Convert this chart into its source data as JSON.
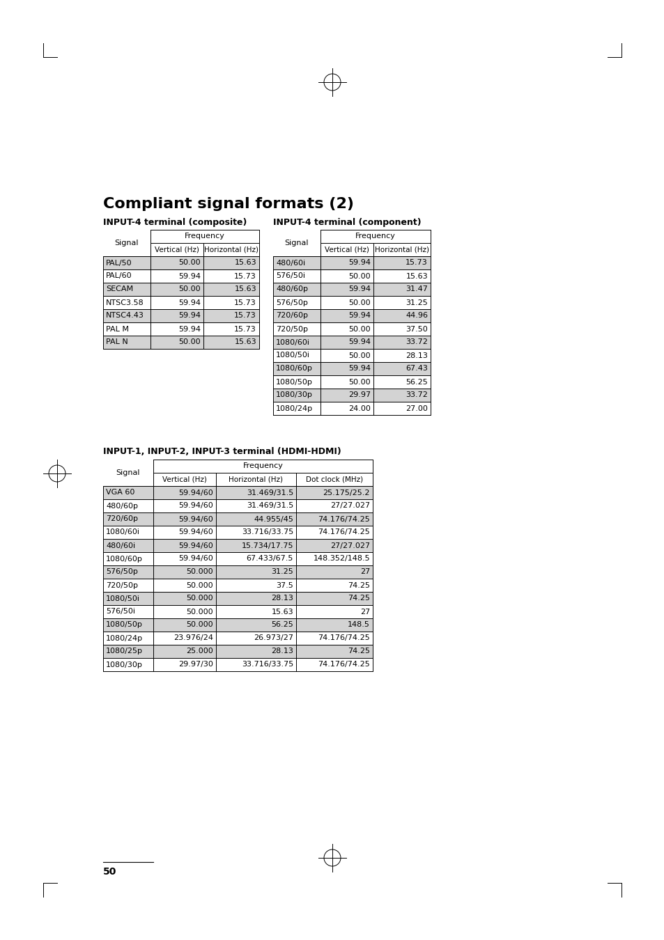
{
  "title": "Compliant signal formats (2)",
  "page_number": "50",
  "composite_title": "INPUT-4 terminal (composite)",
  "component_title": "INPUT-4 terminal (component)",
  "hdmi_title": "INPUT-1, INPUT-2, INPUT-3 terminal (HDMI-HDMI)",
  "composite_data": [
    [
      "PAL/50",
      "50.00",
      "15.63"
    ],
    [
      "PAL/60",
      "59.94",
      "15.73"
    ],
    [
      "SECAM",
      "50.00",
      "15.63"
    ],
    [
      "NTSC3.58",
      "59.94",
      "15.73"
    ],
    [
      "NTSC4.43",
      "59.94",
      "15.73"
    ],
    [
      "PAL M",
      "59.94",
      "15.73"
    ],
    [
      "PAL N",
      "50.00",
      "15.63"
    ]
  ],
  "composite_shaded": [
    0,
    2,
    4,
    6
  ],
  "component_data": [
    [
      "480/60i",
      "59.94",
      "15.73"
    ],
    [
      "576/50i",
      "50.00",
      "15.63"
    ],
    [
      "480/60p",
      "59.94",
      "31.47"
    ],
    [
      "576/50p",
      "50.00",
      "31.25"
    ],
    [
      "720/60p",
      "59.94",
      "44.96"
    ],
    [
      "720/50p",
      "50.00",
      "37.50"
    ],
    [
      "1080/60i",
      "59.94",
      "33.72"
    ],
    [
      "1080/50i",
      "50.00",
      "28.13"
    ],
    [
      "1080/60p",
      "59.94",
      "67.43"
    ],
    [
      "1080/50p",
      "50.00",
      "56.25"
    ],
    [
      "1080/30p",
      "29.97",
      "33.72"
    ],
    [
      "1080/24p",
      "24.00",
      "27.00"
    ]
  ],
  "component_shaded": [
    0,
    2,
    4,
    6,
    8,
    10
  ],
  "hdmi_data": [
    [
      "VGA 60",
      "59.94/60",
      "31.469/31.5",
      "25.175/25.2"
    ],
    [
      "480/60p",
      "59.94/60",
      "31.469/31.5",
      "27/27.027"
    ],
    [
      "720/60p",
      "59.94/60",
      "44.955/45",
      "74.176/74.25"
    ],
    [
      "1080/60i",
      "59.94/60",
      "33.716/33.75",
      "74.176/74.25"
    ],
    [
      "480/60i",
      "59.94/60",
      "15.734/17.75",
      "27/27.027"
    ],
    [
      "1080/60p",
      "59.94/60",
      "67.433/67.5",
      "148.352/148.5"
    ],
    [
      "576/50p",
      "50.000",
      "31.25",
      "27"
    ],
    [
      "720/50p",
      "50.000",
      "37.5",
      "74.25"
    ],
    [
      "1080/50i",
      "50.000",
      "28.13",
      "74.25"
    ],
    [
      "576/50i",
      "50.000",
      "15.63",
      "27"
    ],
    [
      "1080/50p",
      "50.000",
      "56.25",
      "148.5"
    ],
    [
      "1080/24p",
      "23.976/24",
      "26.973/27",
      "74.176/74.25"
    ],
    [
      "1080/25p",
      "25.000",
      "28.13",
      "74.25"
    ],
    [
      "1080/30p",
      "29.97/30",
      "33.716/33.75",
      "74.176/74.25"
    ]
  ],
  "hdmi_shaded": [
    0,
    2,
    4,
    6,
    8,
    10,
    12
  ],
  "bg_color": "#ffffff",
  "shaded_color": "#d3d3d3",
  "text_color": "#000000"
}
